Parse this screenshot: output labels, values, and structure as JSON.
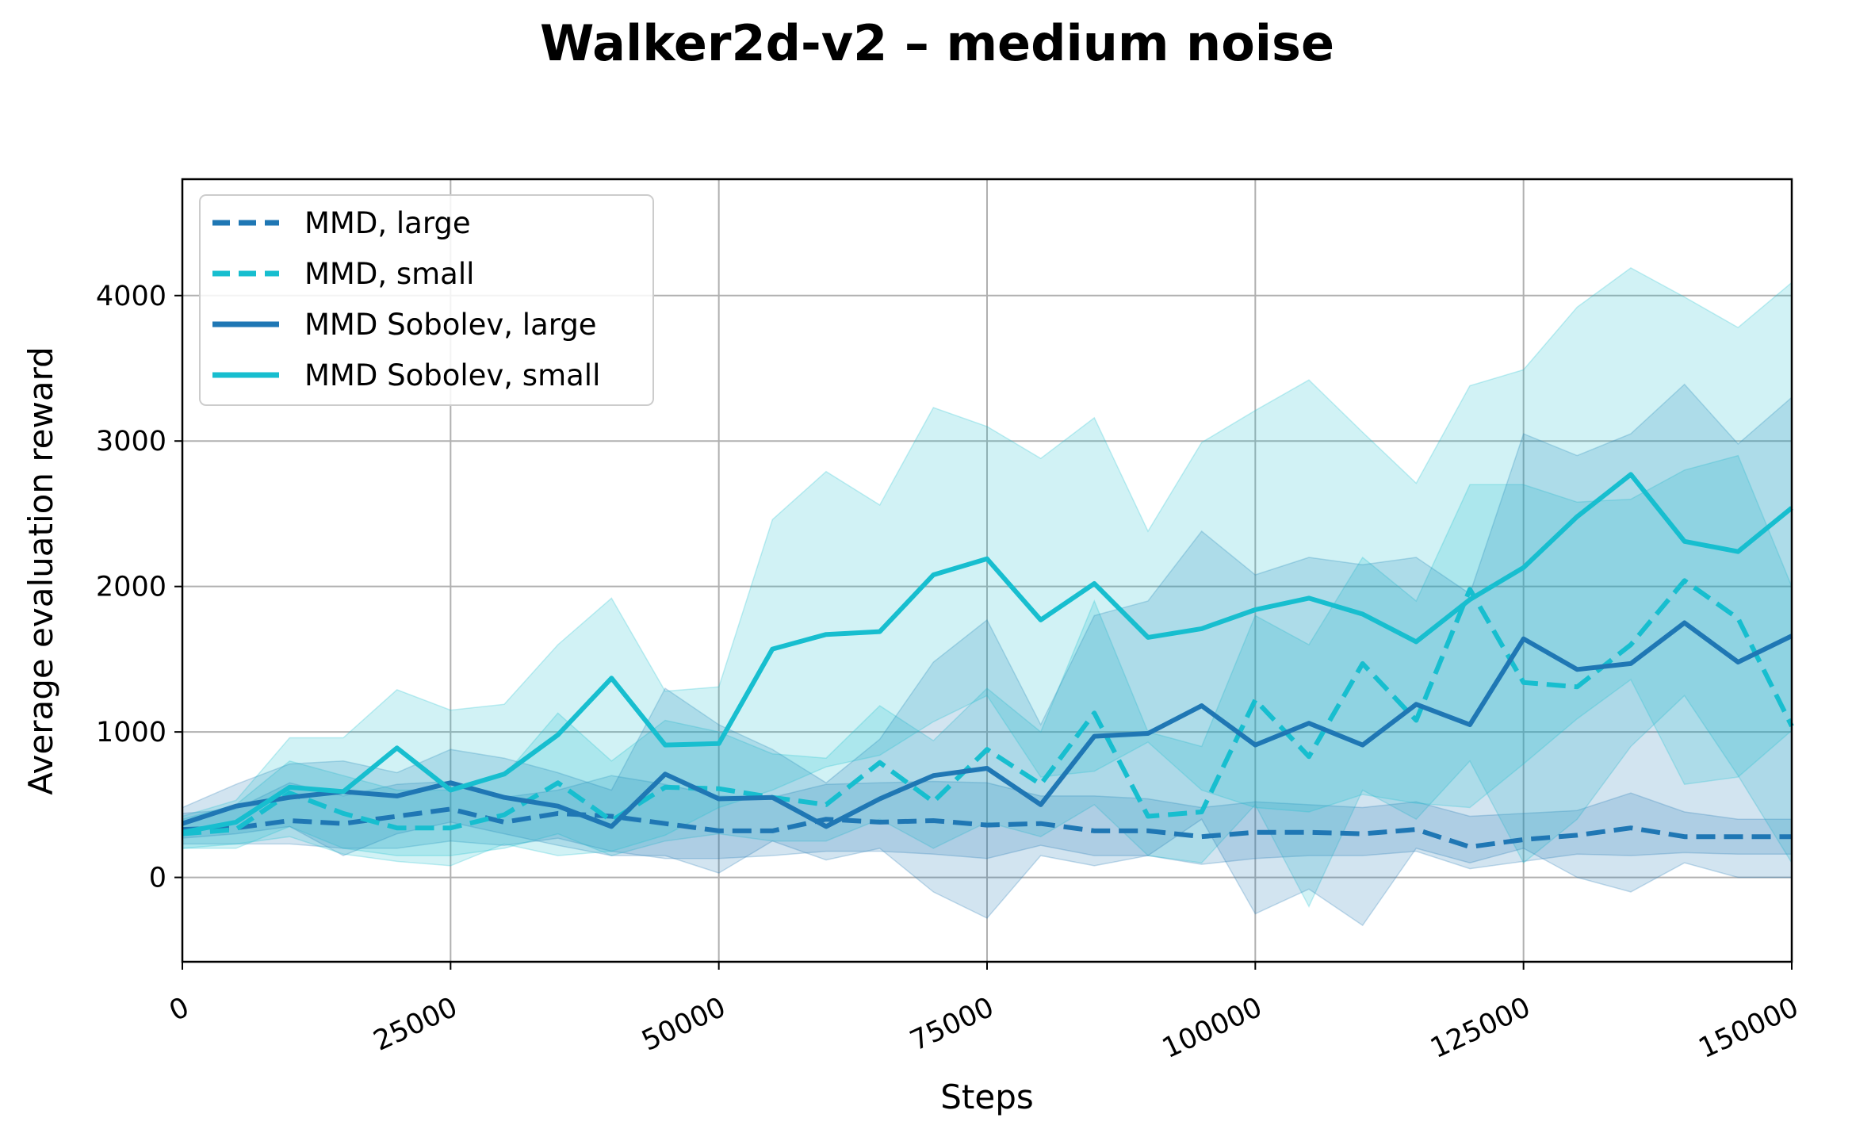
{
  "chart_data": {
    "type": "line",
    "title": "Walker2d-v2 – medium noise",
    "xlabel": "Steps",
    "ylabel": "Average evaluation reward",
    "xlim": [
      0,
      150000
    ],
    "ylim": [
      -580,
      4800
    ],
    "xticks": [
      0,
      25000,
      50000,
      75000,
      100000,
      125000,
      150000
    ],
    "yticks": [
      0,
      1000,
      2000,
      3000,
      4000
    ],
    "grid": true,
    "legend_position": "upper-left",
    "x": [
      0,
      5000,
      10000,
      15000,
      20000,
      25000,
      30000,
      35000,
      40000,
      45000,
      50000,
      55000,
      60000,
      65000,
      70000,
      75000,
      80000,
      85000,
      90000,
      95000,
      100000,
      105000,
      110000,
      115000,
      120000,
      125000,
      130000,
      135000,
      140000,
      145000,
      150000
    ],
    "series": [
      {
        "name": "MMD, large",
        "color": "#1f77b4",
        "style": "dashed",
        "values": [
          330,
          340,
          390,
          370,
          420,
          470,
          380,
          440,
          420,
          370,
          320,
          320,
          400,
          380,
          390,
          360,
          370,
          320,
          320,
          280,
          310,
          310,
          300,
          330,
          210,
          260,
          290,
          340,
          280,
          280,
          280
        ],
        "upper": [
          440,
          470,
          650,
          560,
          640,
          660,
          550,
          600,
          700,
          640,
          560,
          550,
          640,
          650,
          660,
          650,
          560,
          560,
          540,
          480,
          520,
          500,
          480,
          520,
          420,
          440,
          460,
          580,
          450,
          400,
          400
        ],
        "lower": [
          230,
          230,
          230,
          200,
          200,
          250,
          220,
          270,
          180,
          130,
          130,
          150,
          180,
          180,
          160,
          130,
          220,
          150,
          150,
          90,
          130,
          150,
          150,
          180,
          60,
          110,
          160,
          150,
          170,
          160,
          160
        ]
      },
      {
        "name": "MMD, small",
        "color": "#17becf",
        "style": "dashed",
        "values": [
          300,
          330,
          580,
          440,
          340,
          340,
          430,
          650,
          390,
          620,
          610,
          550,
          500,
          790,
          520,
          880,
          640,
          1130,
          420,
          450,
          1220,
          830,
          1470,
          1080,
          1980,
          1340,
          1310,
          1600,
          2040,
          1780,
          1040
        ],
        "upper": [
          400,
          500,
          800,
          700,
          600,
          600,
          700,
          1130,
          800,
          1080,
          1000,
          850,
          820,
          1180,
          940,
          1300,
          1000,
          1900,
          1000,
          900,
          1800,
          1600,
          2200,
          1900,
          2700,
          2700,
          2580,
          2600,
          2800,
          2900,
          2000
        ],
        "lower": [
          200,
          200,
          350,
          200,
          150,
          150,
          200,
          300,
          150,
          250,
          300,
          250,
          250,
          400,
          200,
          380,
          280,
          500,
          150,
          100,
          500,
          -200,
          600,
          400,
          800,
          100,
          400,
          900,
          1250,
          700,
          100
        ]
      },
      {
        "name": "MMD Sobolev, large",
        "color": "#1f77b4",
        "style": "solid",
        "values": [
          370,
          490,
          550,
          590,
          560,
          650,
          550,
          490,
          350,
          710,
          540,
          550,
          350,
          540,
          700,
          750,
          500,
          970,
          990,
          1180,
          910,
          1060,
          910,
          1190,
          1050,
          1640,
          1430,
          1470,
          1750,
          1480,
          1660
        ],
        "upper": [
          480,
          640,
          780,
          800,
          720,
          880,
          820,
          720,
          600,
          1300,
          1050,
          880,
          650,
          950,
          1480,
          1770,
          1050,
          1800,
          1900,
          2380,
          2080,
          2200,
          2150,
          2200,
          1950,
          3050,
          2900,
          3050,
          3390,
          2980,
          3300
        ],
        "lower": [
          270,
          300,
          350,
          150,
          300,
          380,
          300,
          220,
          150,
          150,
          30,
          250,
          120,
          200,
          -100,
          -280,
          150,
          80,
          150,
          400,
          -250,
          -80,
          -330,
          200,
          100,
          200,
          0,
          -100,
          100,
          0,
          0
        ]
      },
      {
        "name": "MMD Sobolev, small",
        "color": "#17becf",
        "style": "solid",
        "values": [
          310,
          380,
          620,
          590,
          890,
          600,
          710,
          980,
          1370,
          910,
          920,
          1570,
          1670,
          1690,
          2080,
          2190,
          1770,
          2020,
          1650,
          1710,
          1840,
          1920,
          1810,
          1620,
          1910,
          2130,
          2480,
          2770,
          2310,
          2240,
          2540
        ],
        "upper": [
          420,
          530,
          960,
          960,
          1290,
          1150,
          1190,
          1600,
          1920,
          1280,
          1310,
          2460,
          2790,
          2560,
          3230,
          3100,
          2880,
          3160,
          2380,
          2990,
          3210,
          3420,
          3060,
          2710,
          3380,
          3490,
          3920,
          4190,
          3990,
          3780,
          4090
        ],
        "lower": [
          200,
          230,
          280,
          160,
          110,
          80,
          230,
          150,
          180,
          290,
          480,
          600,
          760,
          840,
          1070,
          1250,
          690,
          730,
          930,
          600,
          480,
          450,
          570,
          510,
          480,
          780,
          1090,
          1360,
          640,
          690,
          1010
        ]
      }
    ]
  }
}
